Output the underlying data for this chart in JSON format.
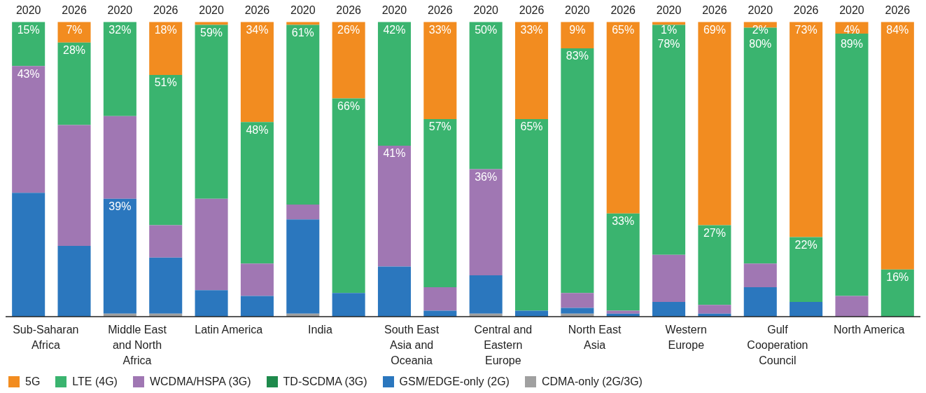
{
  "chart_data": {
    "type": "bar",
    "stacked": true,
    "tick_labels": "x",
    "legend": "bottom left",
    "grid": false,
    "categories": [
      "2020",
      "2026",
      "2020",
      "2026",
      "2020",
      "2026",
      "2020",
      "2026",
      "2020",
      "2026",
      "2020",
      "2026",
      "2020",
      "2026",
      "2020",
      "2026",
      "2020",
      "2026",
      "2020",
      "2026"
    ],
    "annotations": [
      "Sub-Saharan Africa",
      "Middle East and North Africa",
      "Latin America",
      "India",
      "South East Asia and Oceania",
      "Central and Eastern Europe",
      "North East Asia",
      "Western Europe",
      "Gulf Cooperation Council",
      "North America"
    ],
    "series": [
      {
        "name": "CDMA-only (2G/3G)",
        "color": "#a0a0a0",
        "values": [
          0,
          0,
          1,
          1,
          0,
          0,
          1,
          0,
          0,
          0,
          1,
          0,
          1,
          0,
          0,
          0,
          0,
          0,
          0,
          0
        ]
      },
      {
        "name": "GSM/EDGE-only (2G)",
        "color": "#2b77be",
        "values": [
          42,
          24,
          39,
          19,
          9,
          7,
          32,
          8,
          17,
          2,
          13,
          2,
          2,
          1,
          5,
          1,
          10,
          5,
          0,
          0
        ],
        "value_labels": [
          null,
          null,
          "39%",
          null,
          null,
          null,
          null,
          null,
          null,
          null,
          null,
          null,
          null,
          null,
          null,
          null,
          null,
          null,
          null,
          null
        ]
      },
      {
        "name": "TD-SCDMA (3G)",
        "color": "#1e8a4c",
        "values": [
          0,
          0,
          0,
          0,
          0,
          0,
          0,
          0,
          0,
          0,
          0,
          0,
          0,
          0,
          0,
          0,
          0,
          0,
          0,
          0
        ]
      },
      {
        "name": "WCDMA/HSPA (3G)",
        "color": "#a077b3",
        "values": [
          43,
          41,
          28,
          11,
          31,
          11,
          5,
          0,
          41,
          8,
          36,
          0,
          5,
          1,
          16,
          3,
          8,
          0,
          7,
          0
        ],
        "value_labels": [
          "43%",
          null,
          null,
          null,
          null,
          null,
          null,
          null,
          "41%",
          null,
          "36%",
          null,
          null,
          null,
          null,
          null,
          null,
          null,
          null,
          null
        ]
      },
      {
        "name": "LTE (4G)",
        "color": "#3ab46f",
        "values": [
          15,
          28,
          32,
          51,
          59,
          48,
          61,
          66,
          42,
          57,
          50,
          65,
          83,
          33,
          78,
          27,
          80,
          22,
          89,
          16
        ],
        "value_labels": [
          "15%",
          "28%",
          "32%",
          "51%",
          "59%",
          "48%",
          "61%",
          "66%",
          "42%",
          "57%",
          "50%",
          "65%",
          "83%",
          "33%",
          "78%",
          "27%",
          "80%",
          "22%",
          "89%",
          "16%"
        ]
      },
      {
        "name": "5G",
        "color": "#f28c20",
        "values": [
          0,
          7,
          0,
          18,
          1,
          34,
          1,
          26,
          0,
          33,
          0,
          33,
          9,
          65,
          1,
          69,
          2,
          73,
          4,
          84
        ],
        "value_labels": [
          null,
          "7%",
          null,
          "18%",
          null,
          "34%",
          null,
          "26%",
          null,
          "33%",
          null,
          "33%",
          "9%",
          "65%",
          "1%",
          "69%",
          "2%",
          "73%",
          "4%",
          "84%"
        ]
      }
    ]
  }
}
